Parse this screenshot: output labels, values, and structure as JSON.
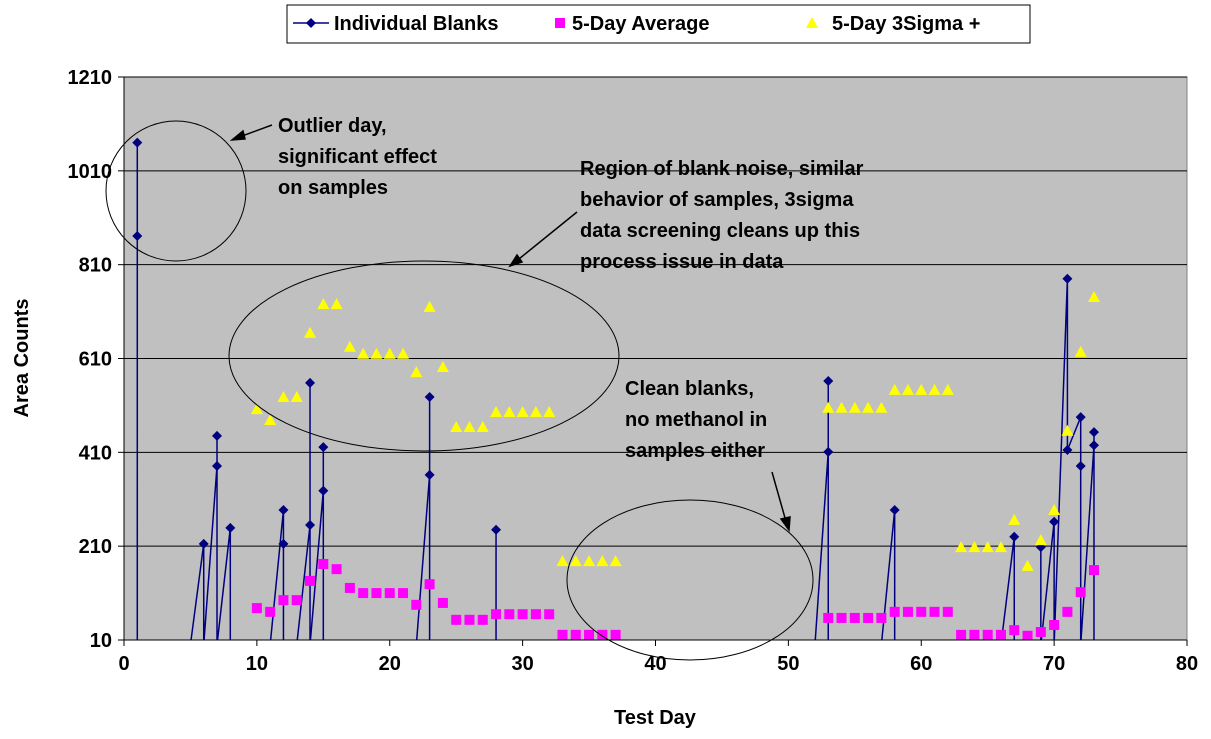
{
  "chart_data": {
    "type": "line",
    "legend": "top",
    "grid": true,
    "background": "#c0c0c0",
    "x_label": "Test Day",
    "y_label": "Area Counts",
    "xlim": [
      0,
      80
    ],
    "xticks": [
      0,
      10,
      20,
      30,
      40,
      50,
      60,
      70,
      80
    ],
    "ylim": [
      10,
      1210
    ],
    "yticks": [
      10,
      210,
      410,
      610,
      810,
      1010,
      1210
    ],
    "series": [
      {
        "name": "Individual Blanks",
        "color": "#000080",
        "marker": "diamond",
        "line": true,
        "x": [
          1,
          1,
          1,
          5,
          6,
          6,
          7,
          7,
          7,
          8,
          8,
          11,
          12,
          12,
          12,
          13,
          14,
          14,
          14,
          15,
          15,
          15,
          22,
          23,
          23,
          23,
          28,
          28,
          28,
          52,
          53,
          53,
          53,
          57,
          58,
          58,
          66,
          67,
          67,
          69,
          69,
          69,
          70,
          70,
          71,
          71,
          72,
          72,
          72,
          73,
          73,
          73
        ],
        "values": [
          1070,
          871,
          0,
          0,
          215,
          0,
          381,
          445,
          0,
          249,
          0,
          0,
          287,
          215,
          0,
          0,
          255,
          558,
          0,
          328,
          421,
          0,
          0,
          362,
          528,
          0,
          0,
          245,
          0,
          0,
          411,
          562,
          0,
          0,
          287,
          0,
          0,
          230,
          0,
          0,
          208,
          0,
          262,
          0,
          780,
          415,
          485,
          381,
          0,
          425,
          453,
          0
        ]
      },
      {
        "name": "5-Day Average",
        "color": "#ff00ff",
        "marker": "square",
        "line": false,
        "x": [
          10,
          11,
          12,
          13,
          14,
          15,
          16,
          17,
          18,
          19,
          20,
          21,
          22,
          23,
          24,
          25,
          26,
          27,
          28,
          29,
          30,
          31,
          32,
          33,
          34,
          35,
          36,
          37,
          53,
          54,
          55,
          56,
          57,
          58,
          59,
          60,
          61,
          62,
          63,
          64,
          65,
          66,
          67,
          68,
          69,
          70,
          71,
          72,
          73
        ],
        "values": [
          78,
          70,
          95,
          95,
          136,
          172,
          161,
          121,
          110,
          110,
          110,
          110,
          85,
          129,
          89,
          53,
          53,
          53,
          65,
          65,
          65,
          65,
          65,
          21,
          21,
          21,
          21,
          21,
          57,
          57,
          57,
          57,
          57,
          70,
          70,
          70,
          70,
          70,
          21,
          21,
          21,
          21,
          31,
          19,
          27,
          42,
          70,
          112,
          159
        ]
      },
      {
        "name": "5-Day 3Sigma +",
        "color": "#ffff00",
        "marker": "triangle",
        "line": false,
        "x": [
          10,
          11,
          12,
          13,
          14,
          15,
          16,
          17,
          18,
          19,
          20,
          21,
          22,
          23,
          24,
          25,
          26,
          27,
          28,
          29,
          30,
          31,
          32,
          33,
          34,
          35,
          36,
          37,
          53,
          54,
          55,
          56,
          57,
          58,
          59,
          60,
          61,
          62,
          63,
          64,
          65,
          66,
          67,
          68,
          69,
          70,
          71,
          72,
          73
        ],
        "values": [
          502,
          479,
          528,
          528,
          665,
          726,
          726,
          635,
          620,
          620,
          620,
          620,
          581,
          720,
          592,
          464,
          464,
          464,
          496,
          496,
          496,
          496,
          496,
          178,
          178,
          178,
          178,
          178,
          505,
          505,
          505,
          505,
          505,
          543,
          543,
          543,
          543,
          543,
          208,
          208,
          208,
          208,
          266,
          168,
          223,
          287,
          456,
          624,
          741
        ]
      }
    ],
    "annotations": [
      {
        "lines": [
          "Outlier day,",
          "significant effect",
          "on samples"
        ]
      },
      {
        "lines": [
          "Region of blank noise, similar",
          "behavior of samples, 3sigma",
          "data screening cleans up this",
          "process issue in data"
        ]
      },
      {
        "lines": [
          "Clean blanks,",
          "no methanol in",
          "samples either"
        ]
      }
    ]
  }
}
